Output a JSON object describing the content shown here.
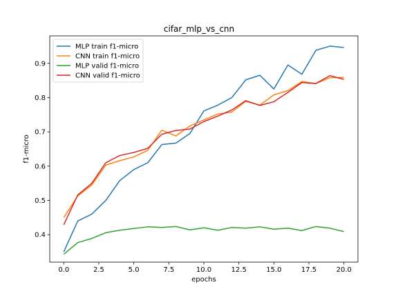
{
  "chart_data": {
    "type": "line",
    "title": "cifar_mlp_vs_cnn",
    "xlabel": "epochs",
    "ylabel": "f1-micro",
    "xlim": [
      -1,
      21
    ],
    "ylim": [
      0.32,
      0.98
    ],
    "xticks": [
      0.0,
      2.5,
      5.0,
      7.5,
      10.0,
      12.5,
      15.0,
      17.5,
      20.0
    ],
    "xtick_labels": [
      "0.0",
      "2.5",
      "5.0",
      "7.5",
      "10.0",
      "12.5",
      "15.0",
      "17.5",
      "20.0"
    ],
    "yticks": [
      0.4,
      0.5,
      0.6,
      0.7,
      0.8,
      0.9
    ],
    "ytick_labels": [
      "0.4",
      "0.5",
      "0.6",
      "0.7",
      "0.8",
      "0.9"
    ],
    "grid": false,
    "legend_position": "top-left",
    "x": [
      0,
      1,
      2,
      3,
      4,
      5,
      6,
      7,
      8,
      9,
      10,
      11,
      12,
      13,
      14,
      15,
      16,
      17,
      18,
      19,
      20
    ],
    "series": [
      {
        "name": "MLP train f1-micro",
        "color": "#1f77b4",
        "values": [
          0.35,
          0.44,
          0.46,
          0.5,
          0.558,
          0.59,
          0.61,
          0.663,
          0.667,
          0.695,
          0.761,
          0.778,
          0.8,
          0.852,
          0.865,
          0.825,
          0.895,
          0.868,
          0.938,
          0.95,
          0.946
        ]
      },
      {
        "name": "CNN train f1-micro",
        "color": "#ff7f0e",
        "values": [
          0.45,
          0.513,
          0.545,
          0.603,
          0.616,
          0.627,
          0.646,
          0.705,
          0.688,
          0.717,
          0.735,
          0.752,
          0.758,
          0.789,
          0.778,
          0.808,
          0.82,
          0.847,
          0.841,
          0.858,
          0.859
        ]
      },
      {
        "name": "MLP valid f1-micro",
        "color": "#2ca02c",
        "values": [
          0.343,
          0.377,
          0.389,
          0.406,
          0.413,
          0.418,
          0.423,
          0.421,
          0.424,
          0.414,
          0.42,
          0.413,
          0.421,
          0.419,
          0.423,
          0.416,
          0.419,
          0.412,
          0.424,
          0.419,
          0.409
        ]
      },
      {
        "name": "CNN valid f1-micro",
        "color": "#d62728",
        "values": [
          0.429,
          0.516,
          0.55,
          0.61,
          0.631,
          0.64,
          0.652,
          0.693,
          0.704,
          0.708,
          0.73,
          0.746,
          0.764,
          0.791,
          0.777,
          0.788,
          0.815,
          0.844,
          0.841,
          0.864,
          0.853
        ]
      }
    ]
  }
}
